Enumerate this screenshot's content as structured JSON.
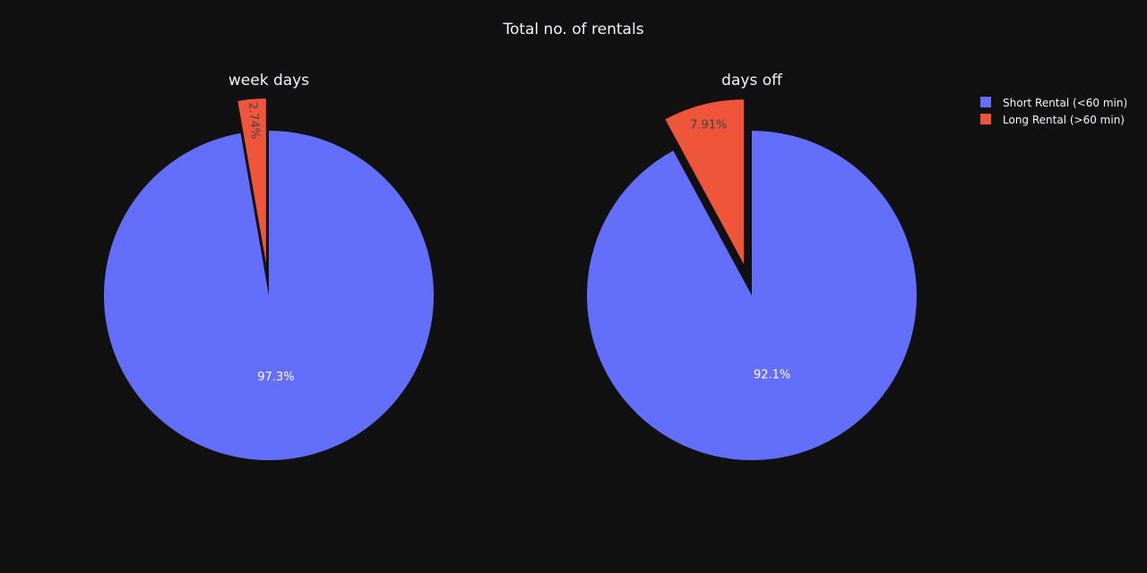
{
  "chart_data": {
    "type": "pie",
    "title": "Total no. of rentals",
    "legend": {
      "placement": "top-right",
      "entries": [
        {
          "name": "Short Rental (<60 min)",
          "color": "#636efa"
        },
        {
          "name": "Long Rental (>60 min)",
          "color": "#ef553b"
        }
      ]
    },
    "pies": [
      {
        "title": "week days",
        "slices": [
          {
            "name": "Long Rental (>60 min)",
            "value": 2.74,
            "label": "2.74%",
            "color": "#ef553b",
            "pulled": true,
            "label_rotated": true
          },
          {
            "name": "Short Rental (<60 min)",
            "value": 97.26,
            "label": "97.3%",
            "color": "#636efa",
            "pulled": false,
            "label_rotated": false
          }
        ]
      },
      {
        "title": "days off",
        "slices": [
          {
            "name": "Long Rental (>60 min)",
            "value": 7.91,
            "label": "7.91%",
            "color": "#ef553b",
            "pulled": true,
            "label_rotated": false
          },
          {
            "name": "Short Rental (<60 min)",
            "value": 92.09,
            "label": "92.1%",
            "color": "#636efa",
            "pulled": false,
            "label_rotated": false
          }
        ]
      }
    ]
  }
}
